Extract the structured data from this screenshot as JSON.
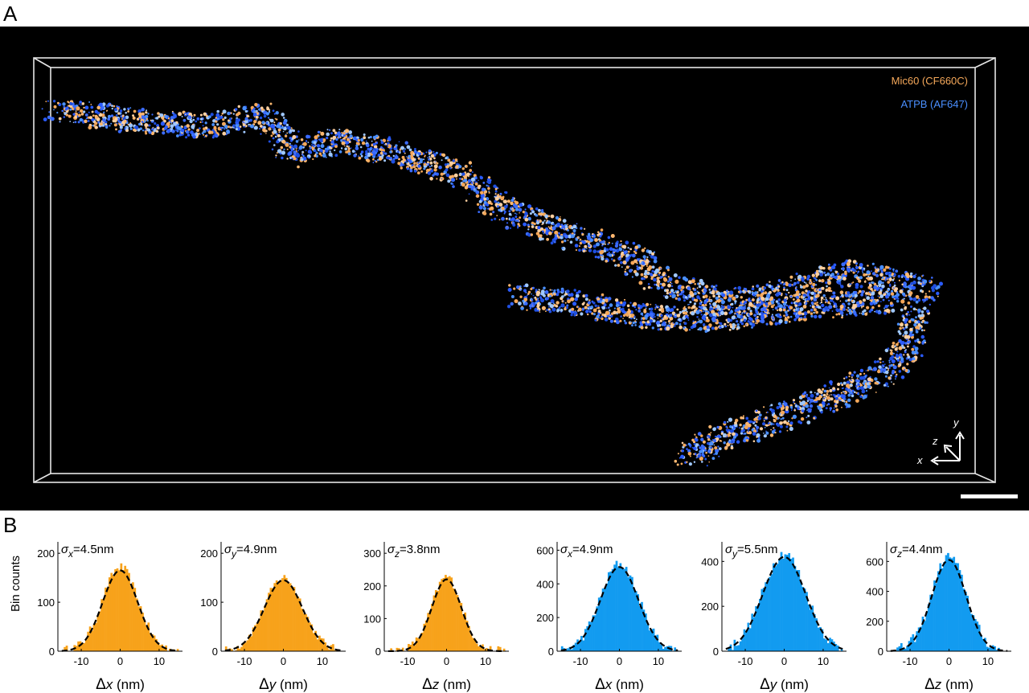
{
  "panels": {
    "a": "A",
    "b": "B"
  },
  "micrograph": {
    "legend": [
      {
        "label": "Mic60 (CF660C)",
        "color": "#f5a85a"
      },
      {
        "label": "ATPB (AF647)",
        "color": "#4a8fff"
      }
    ],
    "axes_triad": {
      "x": "x",
      "y": "y",
      "z": "z"
    },
    "scale_bar": true
  },
  "histogram_ylabel": "Bin counts",
  "chart_data": [
    {
      "type": "bar",
      "channel": "Mic60",
      "color": "#f7a21b",
      "annotation_sym": "σ",
      "annotation_sub": "x",
      "annotation_val": "=4.5nm",
      "xlabel_sym": "Δ",
      "xlabel_var": "x",
      "xlabel_unit": " (nm)",
      "xlim": [
        -16,
        16
      ],
      "xticks": [
        -10,
        0,
        10
      ],
      "ylim": [
        0,
        220
      ],
      "yticks": [
        0,
        100,
        200
      ],
      "sigma": 4.5,
      "peak": 165
    },
    {
      "type": "bar",
      "channel": "Mic60",
      "color": "#f7a21b",
      "annotation_sym": "σ",
      "annotation_sub": "y",
      "annotation_val": "=4.9nm",
      "xlabel_sym": "Δ",
      "xlabel_var": "y",
      "xlabel_unit": " (nm)",
      "xlim": [
        -16,
        16
      ],
      "xticks": [
        -10,
        0,
        10
      ],
      "ylim": [
        0,
        220
      ],
      "yticks": [
        0,
        100,
        200
      ],
      "sigma": 4.9,
      "peak": 145
    },
    {
      "type": "bar",
      "channel": "Mic60",
      "color": "#f7a21b",
      "annotation_sym": "σ",
      "annotation_sub": "z",
      "annotation_val": "=3.8nm",
      "xlabel_sym": "Δ",
      "xlabel_var": "z",
      "xlabel_unit": " (nm)",
      "xlim": [
        -16,
        16
      ],
      "xticks": [
        -10,
        0,
        10
      ],
      "ylim": [
        0,
        330
      ],
      "yticks": [
        0,
        100,
        200,
        300
      ],
      "sigma": 3.8,
      "peak": 220
    },
    {
      "type": "bar",
      "channel": "ATPB",
      "color": "#129bf0",
      "annotation_sym": "σ",
      "annotation_sub": "x",
      "annotation_val": "=4.9nm",
      "xlabel_sym": "Δ",
      "xlabel_var": "x",
      "xlabel_unit": " (nm)",
      "xlim": [
        -16,
        16
      ],
      "xticks": [
        -10,
        0,
        10
      ],
      "ylim": [
        0,
        640
      ],
      "yticks": [
        0,
        200,
        400,
        600
      ],
      "sigma": 4.9,
      "peak": 500
    },
    {
      "type": "bar",
      "channel": "ATPB",
      "color": "#129bf0",
      "annotation_sym": "σ",
      "annotation_sub": "y",
      "annotation_val": "=5.5nm",
      "xlabel_sym": "Δ",
      "xlabel_var": "y",
      "xlabel_unit": " (nm)",
      "xlim": [
        -16,
        16
      ],
      "xticks": [
        -10,
        0,
        10
      ],
      "ylim": [
        0,
        480
      ],
      "yticks": [
        0,
        200,
        400
      ],
      "sigma": 5.5,
      "peak": 420
    },
    {
      "type": "bar",
      "channel": "ATPB",
      "color": "#129bf0",
      "annotation_sym": "σ",
      "annotation_sub": "z",
      "annotation_val": "=4.4nm",
      "xlabel_sym": "Δ",
      "xlabel_var": "z",
      "xlabel_unit": " (nm)",
      "xlim": [
        -16,
        16
      ],
      "xticks": [
        -10,
        0,
        10
      ],
      "ylim": [
        0,
        720
      ],
      "yticks": [
        0,
        200,
        400,
        600
      ],
      "sigma": 4.4,
      "peak": 610
    }
  ]
}
